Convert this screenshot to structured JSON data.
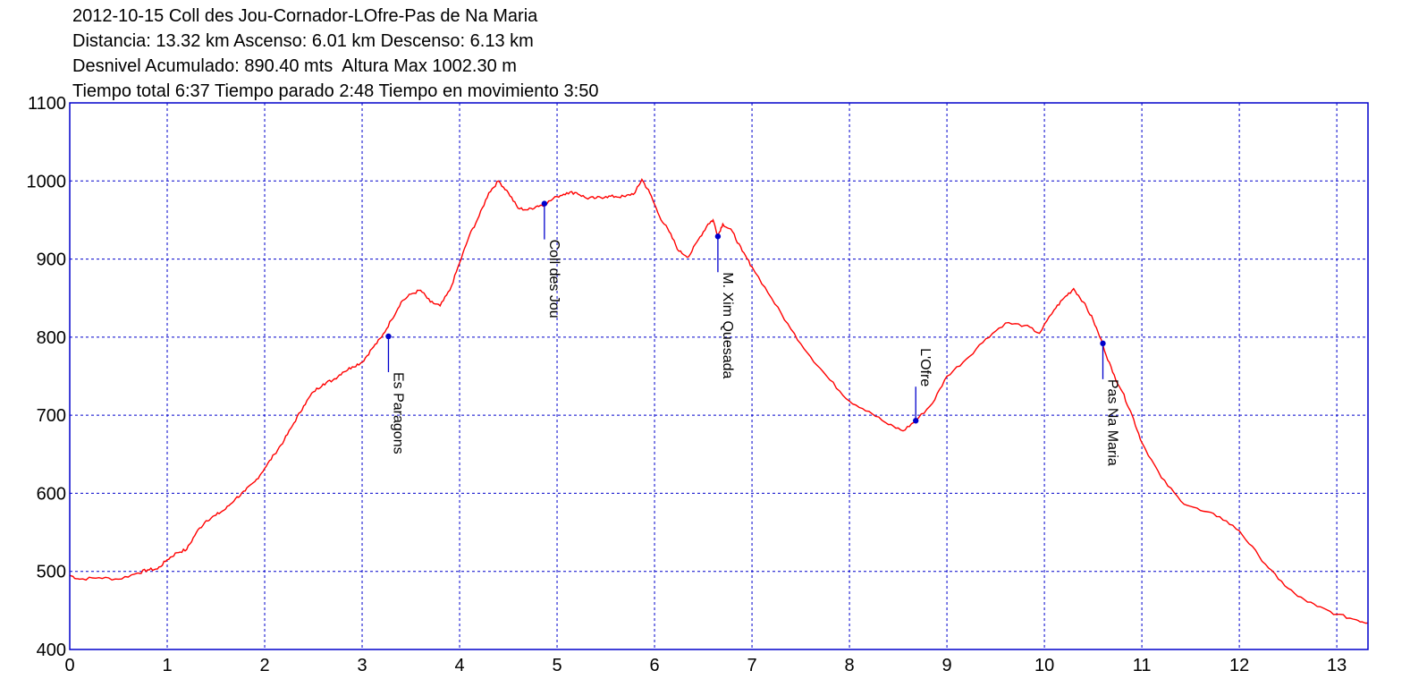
{
  "header": {
    "title": "2012-10-15 Coll des Jou-Cornador-LOfre-Pas de Na Maria",
    "stats_distance": "Distancia: 13.32 km Ascenso: 6.01 km Descenso: 6.13 km",
    "stats_elevation": "Desnivel Acumulado: 890.40 mts  Altura Max 1002.30 m",
    "stats_time": "Tiempo total 6:37 Tiempo parado 2:48 Tiempo en movimiento 3:50"
  },
  "colors": {
    "profile_line": "#ff0000",
    "grid": "#0000cc",
    "frame": "#0000cc",
    "waypoint": "#0000cc"
  },
  "chart_data": {
    "type": "line",
    "xlabel": "",
    "ylabel": "",
    "xlim": [
      0,
      13.32
    ],
    "ylim": [
      400,
      1100
    ],
    "grid": true,
    "grid_style": "dashed",
    "x_ticks": [
      "0",
      "1",
      "2",
      "3",
      "4",
      "5",
      "6",
      "7",
      "8",
      "9",
      "10",
      "11",
      "12",
      "13"
    ],
    "y_ticks": [
      "400",
      "500",
      "600",
      "700",
      "800",
      "900",
      "1000",
      "1100"
    ],
    "series": [
      {
        "x": [
          0,
          0.1,
          0.3,
          0.5,
          0.7,
          0.8,
          0.9,
          1.0,
          1.1,
          1.2,
          1.3,
          1.4,
          1.5,
          1.6,
          1.7,
          1.8,
          1.9,
          2.0,
          2.1,
          2.2,
          2.3,
          2.4,
          2.5,
          2.6,
          2.7,
          2.8,
          2.9,
          3.0,
          3.1,
          3.2,
          3.3,
          3.4,
          3.5,
          3.6,
          3.7,
          3.8,
          3.9,
          4.0,
          4.1,
          4.2,
          4.3,
          4.4,
          4.5,
          4.6,
          4.7,
          4.8,
          4.87,
          5.0,
          5.1,
          5.2,
          5.3,
          5.4,
          5.5,
          5.6,
          5.7,
          5.8,
          5.87,
          5.95,
          6.05,
          6.15,
          6.25,
          6.35,
          6.45,
          6.55,
          6.6,
          6.65,
          6.7,
          6.8,
          6.9,
          7.0,
          7.2,
          7.4,
          7.6,
          7.8,
          8.0,
          8.2,
          8.4,
          8.55,
          8.68,
          8.85,
          9.0,
          9.2,
          9.4,
          9.6,
          9.8,
          9.95,
          10.1,
          10.2,
          10.3,
          10.4,
          10.5,
          10.6,
          10.7,
          10.8,
          10.9,
          11.0,
          11.2,
          11.4,
          11.6,
          11.8,
          12.0,
          12.2,
          12.4,
          12.6,
          12.8,
          13.0,
          13.2,
          13.32
        ],
        "y": [
          495,
          490,
          492,
          490,
          498,
          502,
          503,
          515,
          524,
          528,
          550,
          565,
          572,
          580,
          593,
          603,
          615,
          632,
          650,
          668,
          690,
          712,
          730,
          740,
          745,
          755,
          762,
          768,
          785,
          800,
          822,
          845,
          855,
          860,
          845,
          840,
          860,
          895,
          930,
          955,
          985,
          1000,
          985,
          965,
          963,
          968,
          970,
          980,
          985,
          985,
          978,
          978,
          980,
          980,
          980,
          985,
          1002,
          985,
          955,
          935,
          910,
          903,
          925,
          945,
          950,
          930,
          945,
          935,
          910,
          890,
          850,
          810,
          775,
          745,
          718,
          705,
          688,
          680,
          693,
          715,
          750,
          772,
          798,
          818,
          815,
          805,
          835,
          850,
          862,
          845,
          822,
          790,
          755,
          730,
          700,
          665,
          620,
          590,
          578,
          570,
          552,
          520,
          490,
          468,
          455,
          445,
          438,
          434
        ]
      }
    ],
    "waypoints": [
      {
        "name": "Es Paragons",
        "x": 3.27,
        "y": 801
      },
      {
        "name": "Coll des Jou",
        "x": 4.87,
        "y": 971
      },
      {
        "name": "M. Xim Quesada",
        "x": 6.65,
        "y": 929
      },
      {
        "name": "L'Ofre",
        "x": 8.68,
        "y": 693
      },
      {
        "name": "Pas Na Maria",
        "x": 10.6,
        "y": 792
      }
    ]
  }
}
